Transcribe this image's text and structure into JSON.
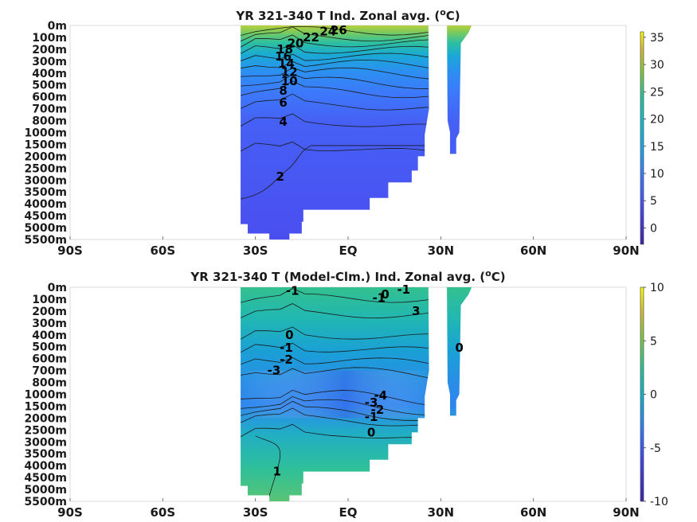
{
  "chart_data": [
    {
      "type": "heatmap",
      "title": "YR 321-340 T Ind. Zonal avg. (",
      "title_sup": "o",
      "title_tail": "C)",
      "x_ticks": [
        "90S",
        "60S",
        "30S",
        "EQ",
        "30N",
        "60N",
        "90N"
      ],
      "x_tick_lats": [
        -90,
        -60,
        -30,
        0,
        30,
        60,
        90
      ],
      "xlim": [
        -90,
        90
      ],
      "y_ticks": [
        "0m",
        "100m",
        "200m",
        "300m",
        "400m",
        "500m",
        "600m",
        "700m",
        "800m",
        "1000m",
        "1500m",
        "2000m",
        "2500m",
        "3000m",
        "3500m",
        "4000m",
        "4500m",
        "5000m",
        "5500m"
      ],
      "colorbar": {
        "ticks": [
          "35",
          "30",
          "25",
          "20",
          "15",
          "10",
          "5",
          "0"
        ],
        "tick_values": [
          35,
          30,
          25,
          20,
          15,
          10,
          5,
          0
        ],
        "range": [
          -3,
          36
        ]
      },
      "contour_labels": [
        {
          "text": "24",
          "lat": -6.5,
          "depth_level": 0.5
        },
        {
          "text": "26",
          "lat": -3,
          "depth_level": 0.4
        },
        {
          "text": "22",
          "lat": -12,
          "depth_level": 1.0
        },
        {
          "text": "20",
          "lat": -17,
          "depth_level": 1.5
        },
        {
          "text": "18",
          "lat": -20.5,
          "depth_level": 2.0
        },
        {
          "text": "16",
          "lat": -21,
          "depth_level": 2.6
        },
        {
          "text": "14",
          "lat": -20,
          "depth_level": 3.2
        },
        {
          "text": "12",
          "lat": -19,
          "depth_level": 3.9
        },
        {
          "text": "10",
          "lat": -19,
          "depth_level": 4.7
        },
        {
          "text": "8",
          "lat": -21,
          "depth_level": 5.5
        },
        {
          "text": "6",
          "lat": -21,
          "depth_level": 6.5
        },
        {
          "text": "4",
          "lat": -21,
          "depth_level": 8.1
        },
        {
          "text": "2",
          "lat": -22,
          "depth_level": 12.7
        }
      ]
    },
    {
      "type": "heatmap",
      "title": "YR 321-340 T (Model-Clm.) Ind. Zonal avg. (",
      "title_sup": "o",
      "title_tail": "C)",
      "x_ticks": [
        "90S",
        "60S",
        "30S",
        "EQ",
        "30N",
        "60N",
        "90N"
      ],
      "x_tick_lats": [
        -90,
        -60,
        -30,
        0,
        30,
        60,
        90
      ],
      "xlim": [
        -90,
        90
      ],
      "y_ticks": [
        "0m",
        "100m",
        "200m",
        "300m",
        "400m",
        "500m",
        "600m",
        "700m",
        "800m",
        "1000m",
        "1500m",
        "2000m",
        "2500m",
        "3000m",
        "3500m",
        "4000m",
        "4500m",
        "5000m",
        "5500m"
      ],
      "colorbar": {
        "ticks": [
          "10",
          "5",
          "0",
          "-5",
          "-10"
        ],
        "tick_values": [
          10,
          5,
          0,
          -5,
          -10
        ],
        "range": [
          -10,
          10
        ]
      },
      "contour_labels": [
        {
          "text": "-1",
          "lat": -18,
          "depth_level": 0.3
        },
        {
          "text": "-1",
          "lat": 10,
          "depth_level": 0.9
        },
        {
          "text": "0",
          "lat": 12,
          "depth_level": 0.6
        },
        {
          "text": "-1",
          "lat": 18,
          "depth_level": 0.2
        },
        {
          "text": "3",
          "lat": 22,
          "depth_level": 2.0
        },
        {
          "text": "0",
          "lat": -19,
          "depth_level": 4.0
        },
        {
          "text": "-1",
          "lat": -20,
          "depth_level": 5.1
        },
        {
          "text": "-2",
          "lat": -20,
          "depth_level": 6.1
        },
        {
          "text": "-3",
          "lat": -24,
          "depth_level": 7.0
        },
        {
          "text": "0",
          "lat": 36,
          "depth_level": 5.1
        },
        {
          "text": "-4",
          "lat": 10.5,
          "depth_level": 9.1
        },
        {
          "text": "-3",
          "lat": 7.5,
          "depth_level": 9.7
        },
        {
          "text": "-2",
          "lat": 9.5,
          "depth_level": 10.3
        },
        {
          "text": "-1",
          "lat": 7.5,
          "depth_level": 10.9
        },
        {
          "text": "0",
          "lat": 7.5,
          "depth_level": 12.2
        },
        {
          "text": "1",
          "lat": -23,
          "depth_level": 15.5
        }
      ]
    }
  ]
}
